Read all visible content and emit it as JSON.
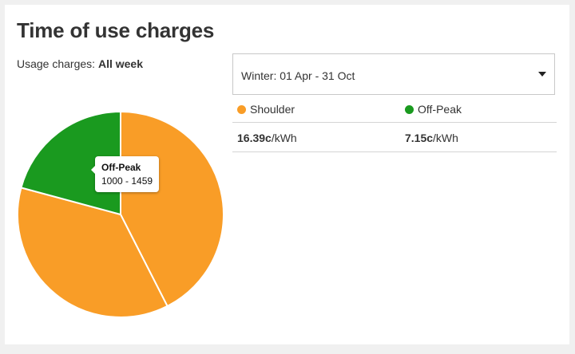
{
  "title": "Time of use charges",
  "usage": {
    "label": "Usage charges:",
    "value": "All week"
  },
  "season_select": {
    "selected": "Winter: 01 Apr - 31 Oct"
  },
  "tooltip": {
    "name": "Off-Peak",
    "range": "1000 - 1459"
  },
  "rates": [
    {
      "name": "Shoulder",
      "color": "#f99d27",
      "value": "16.39c",
      "unit": "/kWh"
    },
    {
      "name": "Off-Peak",
      "color": "#1a9a1f",
      "value": "7.15c",
      "unit": "/kWh"
    }
  ],
  "chart_data": {
    "type": "pie",
    "slices": [
      {
        "name": "Shoulder",
        "value": 0.425,
        "color": "#f99d27"
      },
      {
        "name": "Shoulder",
        "value": 0.367,
        "color": "#f99d27"
      },
      {
        "name": "Off-Peak",
        "value": 0.208,
        "color": "#1a9a1f"
      }
    ],
    "start_angle_deg": 0,
    "direction": "clockwise"
  }
}
